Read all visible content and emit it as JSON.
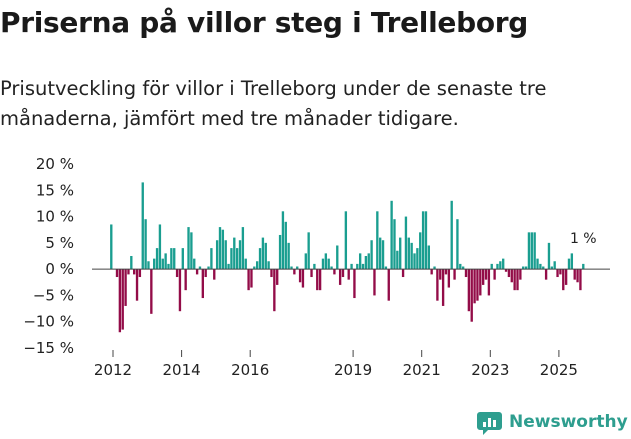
{
  "header": {
    "title": "Priserna på villor steg i Trelleborg",
    "subtitle": "Prisutveckling för villor i Trelleborg under de senaste tre månaderna, jämfört med tre månader tidigare."
  },
  "brand": {
    "name": "Newsworthy"
  },
  "colors": {
    "positive": "#1a9e90",
    "negative": "#930c48",
    "axis": "#444444",
    "text": "#222222"
  },
  "chart_data": {
    "type": "bar",
    "title": "Priserna på villor steg i Trelleborg",
    "xlabel": "",
    "ylabel": "",
    "ylim": [
      -15,
      20
    ],
    "yticks": [
      -15,
      -10,
      -5,
      0,
      5,
      10,
      15,
      20
    ],
    "ytick_labels": [
      "−15 %",
      "−10 %",
      "−5 %",
      "0 %",
      "5 %",
      "10 %",
      "15 %",
      "20 %"
    ],
    "xticks": [
      {
        "x": 2012.0,
        "label": "2012"
      },
      {
        "x": 2014.0,
        "label": "2014"
      },
      {
        "x": 2016.0,
        "label": "2016"
      },
      {
        "x": 2019.0,
        "label": "2019"
      },
      {
        "x": 2021.0,
        "label": "2021"
      },
      {
        "x": 2023.0,
        "label": "2023"
      },
      {
        "x": 2025.0,
        "label": "2025"
      }
    ],
    "x_start": 2011.95,
    "x_step": 0.0834,
    "values": [
      8.5,
      0.0,
      -1.5,
      -12.0,
      -11.5,
      -7.0,
      -1.0,
      2.5,
      -1.0,
      -6.0,
      -1.5,
      16.5,
      9.5,
      1.5,
      -8.5,
      2.0,
      4.0,
      8.5,
      2.0,
      3.0,
      1.0,
      4.0,
      4.0,
      -1.5,
      -8.0,
      4.0,
      -4.0,
      8.0,
      7.0,
      2.0,
      -1.0,
      0.5,
      -5.5,
      -1.5,
      0.5,
      4.0,
      -2.0,
      5.5,
      8.0,
      7.5,
      5.5,
      1.0,
      4.0,
      6.0,
      4.0,
      5.5,
      8.0,
      2.0,
      -4.0,
      -3.5,
      0.5,
      1.5,
      4.0,
      6.0,
      5.0,
      1.5,
      -1.5,
      -8.0,
      -3.0,
      6.5,
      11.0,
      9.0,
      5.0,
      0.5,
      -1.0,
      0.5,
      -2.5,
      -3.5,
      3.0,
      7.0,
      -1.5,
      1.0,
      -4.0,
      -4.0,
      2.0,
      3.0,
      2.0,
      0.5,
      -1.0,
      4.5,
      -3.0,
      -1.5,
      11.0,
      -2.0,
      1.0,
      -5.5,
      1.0,
      3.0,
      1.0,
      2.5,
      3.0,
      5.5,
      -5.0,
      11.0,
      6.0,
      5.5,
      0.5,
      -6.0,
      13.0,
      9.5,
      3.5,
      6.0,
      -1.5,
      10.0,
      6.0,
      5.0,
      3.0,
      4.0,
      7.0,
      11.0,
      11.0,
      4.5,
      -1.0,
      0.5,
      -6.0,
      -2.0,
      -7.0,
      -1.0,
      -3.5,
      13.0,
      -2.0,
      9.5,
      1.0,
      0.5,
      -1.5,
      -8.0,
      -10.0,
      -6.5,
      -6.0,
      -5.0,
      -3.0,
      -2.0,
      -5.0,
      1.0,
      -2.0,
      1.0,
      1.5,
      2.0,
      -0.5,
      -1.5,
      -2.5,
      -4.0,
      -4.0,
      -2.0,
      0.5,
      0.5,
      7.0,
      7.0,
      7.0,
      2.0,
      1.0,
      0.5,
      -2.0,
      5.0,
      0.5,
      1.5,
      -1.5,
      -1.0,
      -4.0,
      -3.0,
      2.0,
      3.0,
      -2.0,
      -2.5,
      -4.0,
      1.0
    ],
    "annotation": {
      "text": "1 %",
      "value": 1.0
    }
  }
}
